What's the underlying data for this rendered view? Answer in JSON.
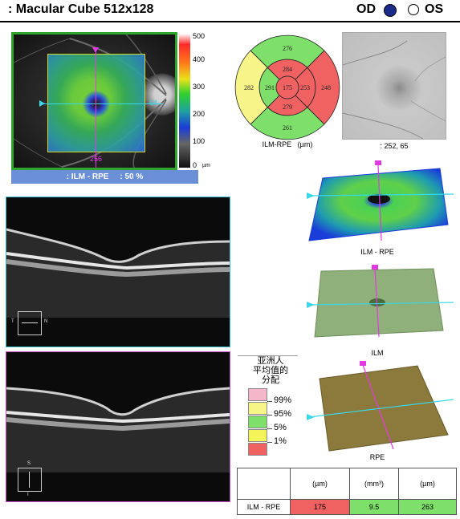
{
  "header": {
    "title": ": Macular Cube 512x128",
    "od_label": "OD",
    "os_label": "OS",
    "od_dot_color": "#1a2a8a"
  },
  "fundus_map": {
    "caption": ": ILM - RPE     : 50 %",
    "h_scan_number": "64",
    "v_scan_number": "256",
    "scale_labels": [
      "500",
      "400",
      "300",
      "200",
      "100",
      "0"
    ],
    "scale_unit": "µm"
  },
  "etdrs": {
    "center": "175",
    "inner_superior": "284",
    "inner_nasal": "253",
    "inner_inferior": "279",
    "inner_temporal": "291",
    "outer_superior": "276",
    "outer_nasal": "248",
    "outer_inferior": "261",
    "outer_temporal": "282",
    "caption": "ILM-RPE   (µm)",
    "colors": {
      "center": "#f06262",
      "inner_superior": "#f06262",
      "inner_nasal": "#f06262",
      "inner_inferior": "#f06262",
      "inner_temporal": "#7ee06a",
      "outer_superior": "#7ee06a",
      "outer_nasal": "#f06262",
      "outer_inferior": "#7ee06a",
      "outer_temporal": "#f7f48a"
    }
  },
  "fundus_photo": {
    "caption": ": 252, 65"
  },
  "maps_3d": {
    "rpe_caption": "ILM - RPE",
    "ilm_caption": "ILM",
    "rpe2_caption": "RPE"
  },
  "bscans": {
    "scan1_left": "T",
    "scan1_right": "N",
    "scan2_top": "S",
    "scan2_bottom": "I"
  },
  "legend": {
    "title_line1": "亚洲人",
    "title_line2": "平均值的",
    "title_line3": "分配",
    "items": [
      {
        "label": "99%",
        "color": "#f4b7c9"
      },
      {
        "label": "95%",
        "color": "#f5f588"
      },
      {
        "label": "5%",
        "color": "#7ee06a"
      },
      {
        "label": "1%",
        "color": "#f3f35a"
      },
      {
        "label": "",
        "color": "#f06262"
      }
    ]
  },
  "results_table": {
    "headers": [
      "",
      "(µm)",
      "(mm³)",
      "(µm)"
    ],
    "row_label": "ILM - RPE",
    "values": [
      "175",
      "9.5",
      "263"
    ],
    "value_colors": [
      "#f06262",
      "#7ee06a",
      "#7ee06a"
    ]
  }
}
